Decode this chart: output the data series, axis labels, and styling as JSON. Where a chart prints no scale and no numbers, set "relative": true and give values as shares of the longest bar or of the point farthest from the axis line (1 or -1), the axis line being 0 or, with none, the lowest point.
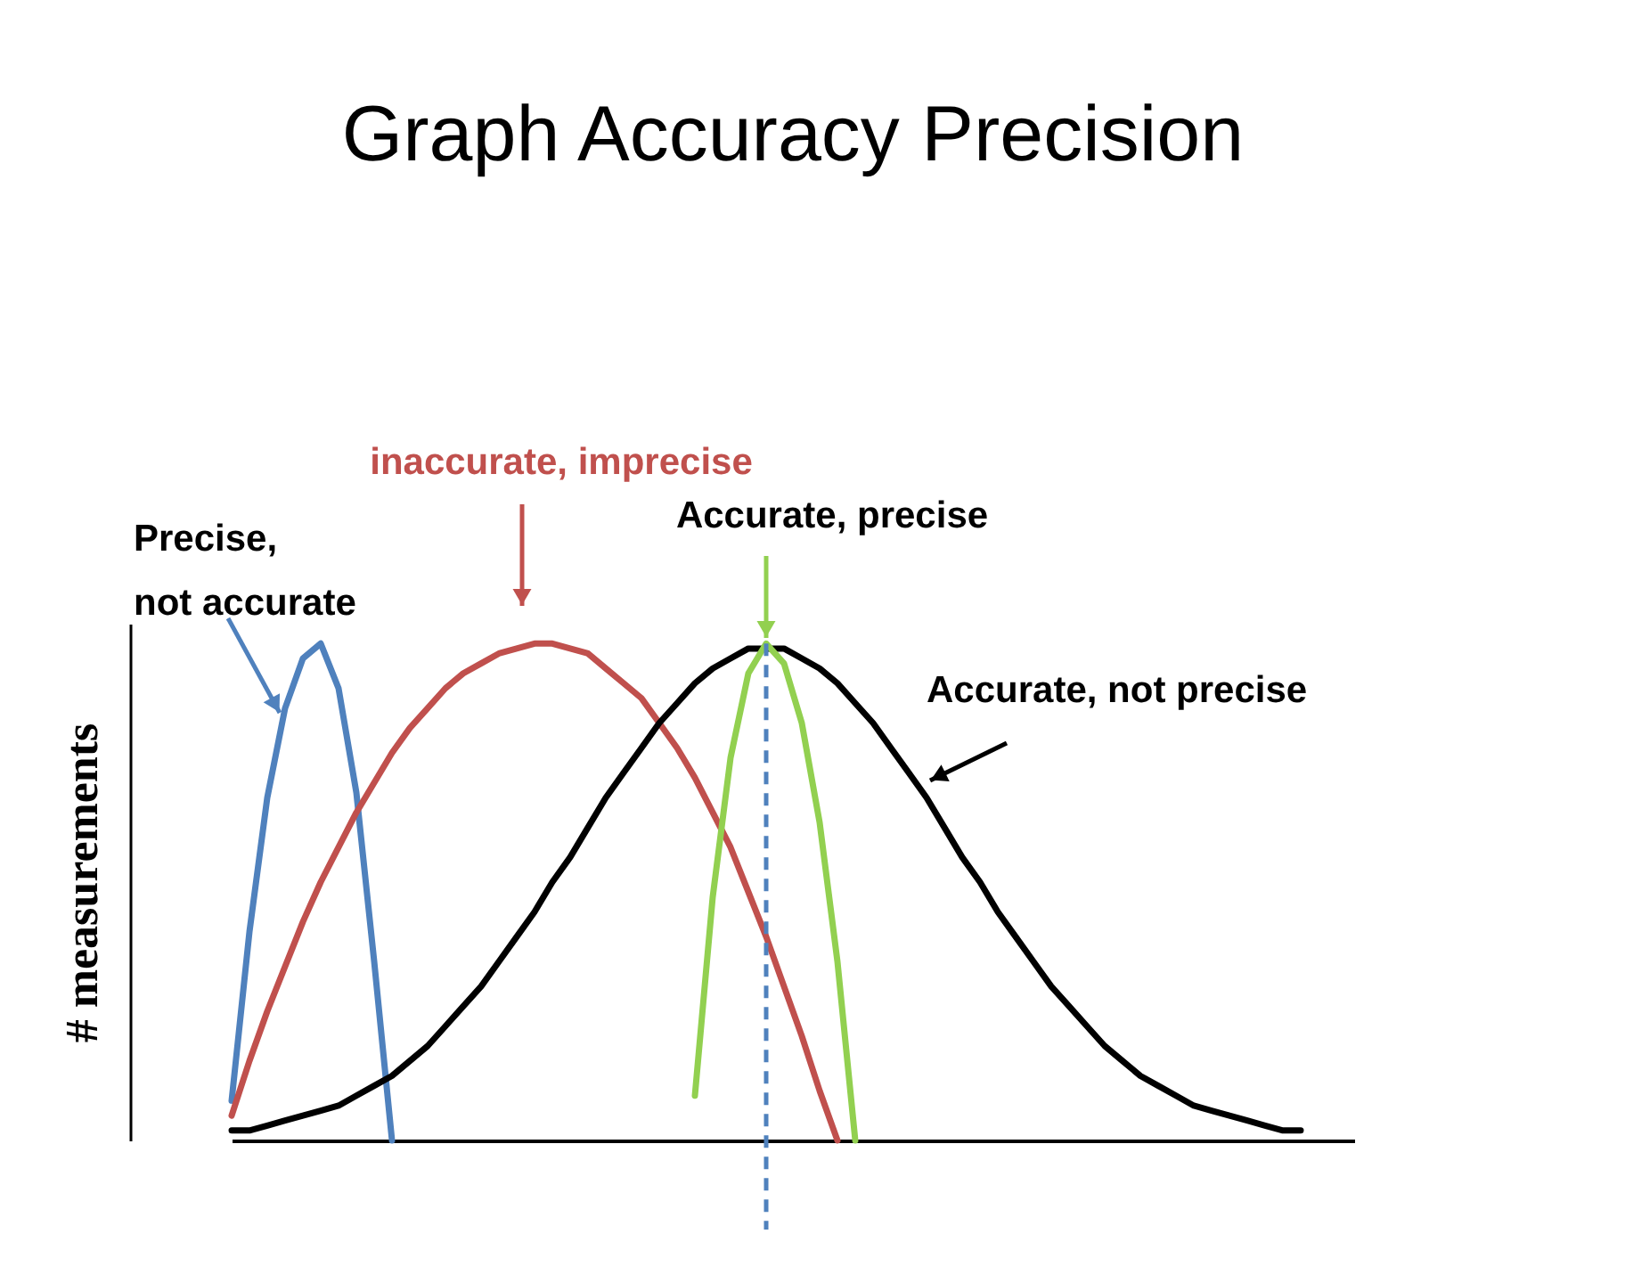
{
  "chart_data": {
    "type": "line",
    "title": "Graph Accuracy Precision",
    "ylabel": "# measurements",
    "relative": true,
    "categories": [
      null,
      null,
      null,
      null,
      null,
      null,
      null,
      null,
      null,
      null,
      null,
      null,
      null,
      null,
      null,
      null,
      null,
      null,
      null,
      null,
      null,
      null,
      null,
      null,
      null,
      null,
      null,
      null,
      null,
      null,
      null,
      null,
      null,
      null,
      null,
      null,
      null,
      null,
      null,
      null,
      null,
      null,
      null,
      null,
      null,
      null,
      null,
      null,
      null,
      null,
      null,
      null,
      null,
      null,
      null,
      null,
      null,
      null,
      null,
      null,
      null,
      null,
      null,
      null
    ],
    "series": [
      {
        "color": "#4f81bd",
        "values": [
          0.08,
          0.42,
          0.69,
          0.87,
          0.97,
          1.0,
          0.91,
          0.7,
          0.36,
          0,
          null,
          null,
          null,
          null,
          null,
          null,
          null,
          null,
          null,
          null,
          null,
          null,
          null,
          null,
          null,
          null,
          null,
          null,
          null,
          null,
          null,
          null,
          null,
          null,
          null,
          null,
          null,
          null,
          null,
          null,
          null,
          null,
          null,
          null,
          null,
          null,
          null,
          null,
          null,
          null,
          null,
          null,
          null,
          null,
          null,
          null,
          null,
          null,
          null,
          null,
          null,
          null,
          null,
          null
        ]
      },
      {
        "color": "#c0504d",
        "values": [
          0.05,
          0.16,
          0.26,
          0.35,
          0.44,
          0.52,
          0.59,
          0.66,
          0.72,
          0.78,
          0.83,
          0.87,
          0.91,
          0.94,
          0.96,
          0.98,
          0.99,
          1.0,
          1.0,
          0.99,
          0.98,
          0.95,
          0.92,
          0.89,
          0.84,
          0.79,
          0.73,
          0.66,
          0.59,
          0.5,
          0.41,
          0.31,
          0.21,
          0.1,
          0,
          null,
          null,
          null,
          null,
          null,
          null,
          null,
          null,
          null,
          null,
          null,
          null,
          null,
          null,
          null,
          null,
          null,
          null,
          null,
          null,
          null,
          null,
          null,
          null,
          null,
          null,
          null,
          null,
          null
        ]
      },
      {
        "color": "#000000",
        "values": [
          0.02,
          0.02,
          0.03,
          0.04,
          0.05,
          0.06,
          0.07,
          0.09,
          0.11,
          0.13,
          0.16,
          0.19,
          0.23,
          0.27,
          0.31,
          0.36,
          0.41,
          0.46,
          0.52,
          0.57,
          0.63,
          0.69,
          0.74,
          0.79,
          0.84,
          0.88,
          0.92,
          0.95,
          0.97,
          0.99,
          0.99,
          0.99,
          0.97,
          0.95,
          0.92,
          0.88,
          0.84,
          0.79,
          0.74,
          0.69,
          0.63,
          0.57,
          0.52,
          0.46,
          0.41,
          0.36,
          0.31,
          0.27,
          0.23,
          0.19,
          0.16,
          0.13,
          0.11,
          0.09,
          0.07,
          0.06,
          0.05,
          0.04,
          0.03,
          0.02,
          0.02,
          null,
          null,
          null
        ]
      },
      {
        "color": "#92d050",
        "values": [
          null,
          null,
          null,
          null,
          null,
          null,
          null,
          null,
          null,
          null,
          null,
          null,
          null,
          null,
          null,
          null,
          null,
          null,
          null,
          null,
          null,
          null,
          null,
          null,
          null,
          null,
          0.09,
          0.49,
          0.77,
          0.94,
          1.0,
          0.96,
          0.84,
          0.64,
          0.36,
          0,
          null,
          null,
          null,
          null,
          null,
          null,
          null,
          null,
          null,
          null,
          null,
          null,
          null,
          null,
          null,
          null,
          null,
          null,
          null,
          null,
          null,
          null,
          null,
          null,
          null,
          null,
          null,
          null
        ]
      }
    ],
    "annotations": [
      "Precise,\nnot accurate",
      "inaccurate, imprecise",
      "Accurate, precise",
      "Accurate, not precise"
    ]
  }
}
